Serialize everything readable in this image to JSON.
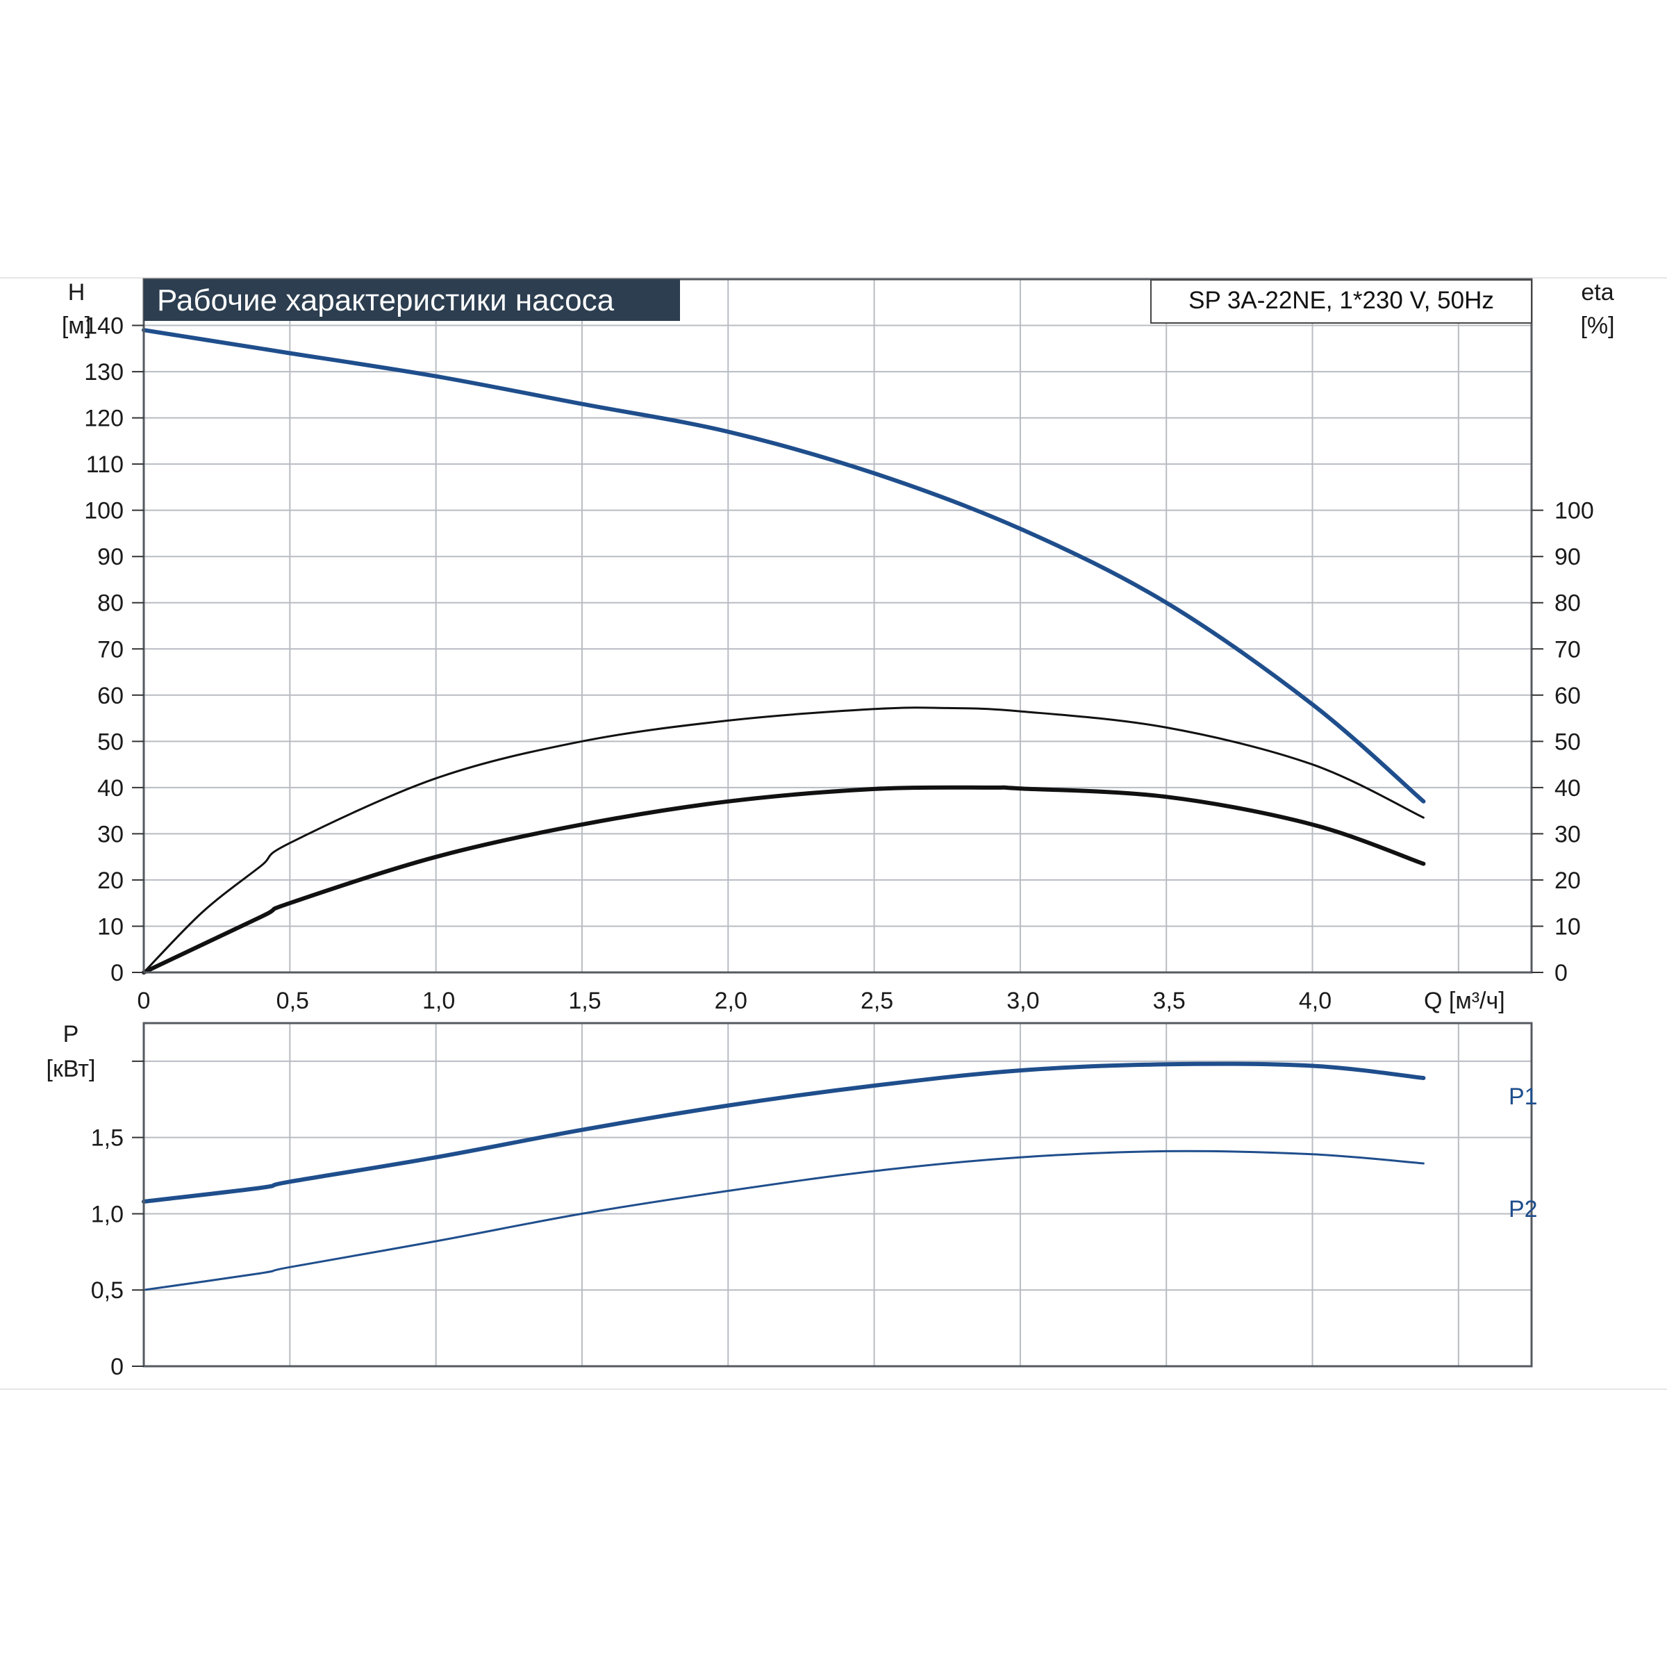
{
  "chart_data": [
    {
      "type": "line",
      "title": "Рабочие характеристики насоса",
      "subtitle": "SP 3A-22NE, 1*230 V, 50Hz",
      "xlabel": "Q [м³/ч]",
      "x_ticks": [
        "0",
        "0,5",
        "1,0",
        "1,5",
        "2,0",
        "2,5",
        "3,0",
        "3,5",
        "4,0"
      ],
      "xlim": [
        0,
        4.75
      ],
      "y_left": {
        "label_line1": "H",
        "label_line2": "[м]",
        "ylim": [
          0,
          150
        ],
        "ticks": [
          "0",
          "10",
          "20",
          "30",
          "40",
          "50",
          "60",
          "70",
          "80",
          "90",
          "100",
          "110",
          "120",
          "130",
          "140"
        ]
      },
      "y_right": {
        "label_line1": "eta",
        "label_line2": "[%]",
        "ylim": [
          0,
          150
        ],
        "ticks": [
          "0",
          "10",
          "20",
          "30",
          "40",
          "50",
          "60",
          "70",
          "80",
          "90",
          "100"
        ]
      },
      "grid": true,
      "series": [
        {
          "name": "",
          "axis": "left",
          "color": "#1f4e8c",
          "x": [
            0,
            0.4,
            0.5,
            1.0,
            1.5,
            2.0,
            2.5,
            3.0,
            3.5,
            4.0,
            4.38
          ],
          "y": [
            139,
            135,
            134,
            129,
            123,
            117,
            108,
            96,
            80,
            58,
            37
          ]
        },
        {
          "name": "",
          "axis": "right",
          "color": "#111111",
          "x": [
            0,
            0.2,
            0.4,
            0.5,
            1.0,
            1.5,
            2.0,
            2.5,
            2.75,
            3.0,
            3.5,
            4.0,
            4.38
          ],
          "y": [
            0,
            13,
            23,
            28,
            42,
            50,
            54.5,
            57,
            57.2,
            56.5,
            53,
            45,
            33.5
          ]
        },
        {
          "name": "",
          "axis": "right",
          "color": "#111111",
          "x": [
            0,
            0.4,
            0.5,
            1.0,
            1.5,
            2.0,
            2.5,
            2.9,
            3.0,
            3.5,
            4.0,
            4.38
          ],
          "y": [
            0,
            12,
            15,
            25,
            32,
            37,
            39.7,
            40,
            39.8,
            38,
            32,
            23.5
          ]
        }
      ]
    },
    {
      "type": "line",
      "xlabel": "",
      "xlim": [
        0,
        4.75
      ],
      "y_left": {
        "label_line1": "P",
        "label_line2": "[кВт]",
        "ylim": [
          0,
          2.25
        ],
        "ticks": [
          "0",
          "0,5",
          "1,0",
          "1,5"
        ]
      },
      "grid": true,
      "series": [
        {
          "name": "P1",
          "color": "#1f4e8c",
          "x": [
            0,
            0.4,
            0.5,
            1.0,
            1.5,
            2.0,
            2.5,
            3.0,
            3.5,
            4.0,
            4.38
          ],
          "y": [
            1.08,
            1.17,
            1.21,
            1.37,
            1.55,
            1.71,
            1.84,
            1.94,
            1.98,
            1.97,
            1.89
          ]
        },
        {
          "name": "P2",
          "color": "#1f4e8c",
          "x": [
            0,
            0.4,
            0.5,
            1.0,
            1.5,
            2.0,
            2.5,
            3.0,
            3.5,
            4.0,
            4.38
          ],
          "y": [
            0.5,
            0.61,
            0.65,
            0.82,
            1.0,
            1.15,
            1.28,
            1.37,
            1.41,
            1.39,
            1.33
          ]
        }
      ]
    }
  ]
}
